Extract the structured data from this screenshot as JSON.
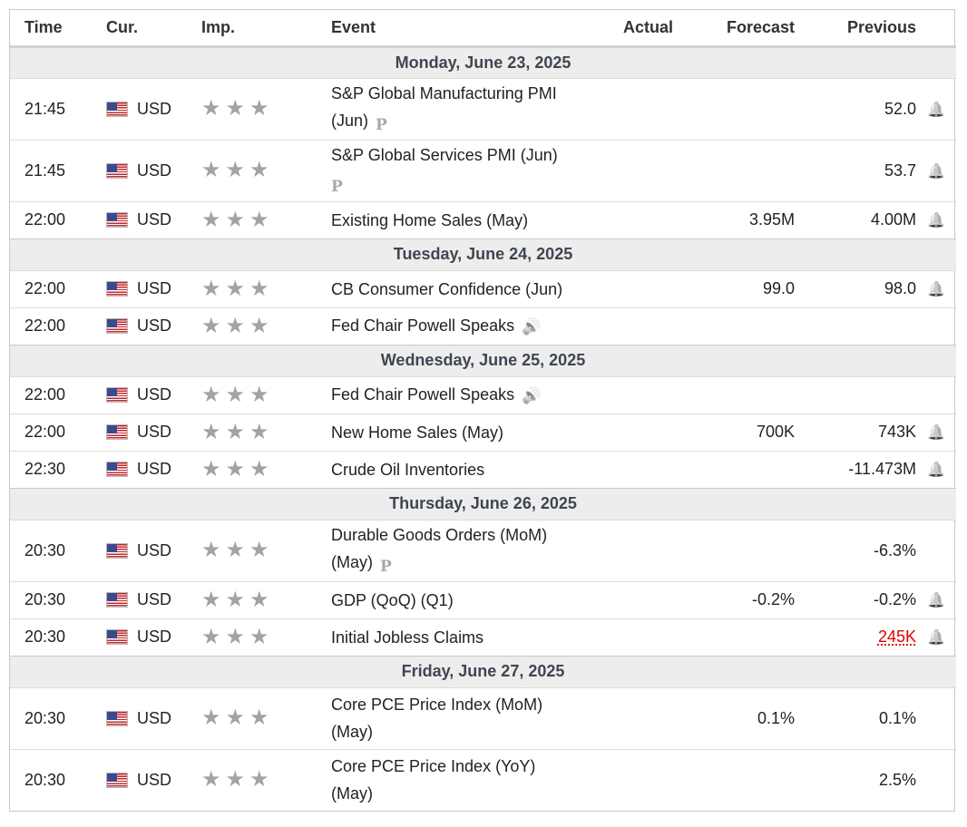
{
  "columns": {
    "time": "Time",
    "currency": "Cur.",
    "importance": "Imp.",
    "event": "Event",
    "actual": "Actual",
    "forecast": "Forecast",
    "previous": "Previous"
  },
  "icons": {
    "flag": "us-flag-icon",
    "star": "★",
    "preliminary": "P",
    "speaker": "🔊",
    "bell": "🔔"
  },
  "colors": {
    "star": "#a3a3a3",
    "day_header_bg": "#ededed",
    "worse_value": "#e30000"
  },
  "days": [
    {
      "label": "Monday, June 23, 2025",
      "events": [
        {
          "time": "21:45",
          "currency": "USD",
          "stars": 3,
          "event_line1": "S&P Global Manufacturing PMI",
          "event_line2": "(Jun)",
          "marker": "P",
          "actual": "",
          "forecast": "",
          "previous": "52.0",
          "alert": true
        },
        {
          "time": "21:45",
          "currency": "USD",
          "stars": 3,
          "event_line1": "S&P Global Services PMI (Jun)",
          "event_line2": "",
          "marker": "P",
          "actual": "",
          "forecast": "",
          "previous": "53.7",
          "alert": true
        },
        {
          "time": "22:00",
          "currency": "USD",
          "stars": 3,
          "event_line1": "Existing Home Sales (May)",
          "event_line2": "",
          "marker": "",
          "actual": "",
          "forecast": "3.95M",
          "previous": "4.00M",
          "alert": true
        }
      ]
    },
    {
      "label": "Tuesday, June 24, 2025",
      "events": [
        {
          "time": "22:00",
          "currency": "USD",
          "stars": 3,
          "event_line1": "CB Consumer Confidence (Jun)",
          "event_line2": "",
          "marker": "",
          "actual": "",
          "forecast": "99.0",
          "previous": "98.0",
          "alert": true
        },
        {
          "time": "22:00",
          "currency": "USD",
          "stars": 3,
          "event_line1": "Fed Chair Powell Speaks",
          "event_line2": "",
          "marker": "speaker",
          "actual": "",
          "forecast": "",
          "previous": "",
          "alert": false
        }
      ]
    },
    {
      "label": "Wednesday, June 25, 2025",
      "events": [
        {
          "time": "22:00",
          "currency": "USD",
          "stars": 3,
          "event_line1": "Fed Chair Powell Speaks",
          "event_line2": "",
          "marker": "speaker",
          "actual": "",
          "forecast": "",
          "previous": "",
          "alert": false
        },
        {
          "time": "22:00",
          "currency": "USD",
          "stars": 3,
          "event_line1": "New Home Sales (May)",
          "event_line2": "",
          "marker": "",
          "actual": "",
          "forecast": "700K",
          "previous": "743K",
          "alert": true
        },
        {
          "time": "22:30",
          "currency": "USD",
          "stars": 3,
          "event_line1": "Crude Oil Inventories",
          "event_line2": "",
          "marker": "",
          "actual": "",
          "forecast": "",
          "previous": "-11.473M",
          "alert": true
        }
      ]
    },
    {
      "label": "Thursday, June 26, 2025",
      "events": [
        {
          "time": "20:30",
          "currency": "USD",
          "stars": 3,
          "event_line1": "Durable Goods Orders (MoM)",
          "event_line2": "(May)",
          "marker": "P",
          "actual": "",
          "forecast": "",
          "previous": "-6.3%",
          "alert": false
        },
        {
          "time": "20:30",
          "currency": "USD",
          "stars": 3,
          "event_line1": "GDP (QoQ) (Q1)",
          "event_line2": "",
          "marker": "",
          "actual": "",
          "forecast": "-0.2%",
          "previous": "-0.2%",
          "alert": true
        },
        {
          "time": "20:30",
          "currency": "USD",
          "stars": 3,
          "event_line1": "Initial Jobless Claims",
          "event_line2": "",
          "marker": "",
          "actual": "",
          "forecast": "",
          "previous": "245K",
          "previous_worse": true,
          "alert": true
        }
      ]
    },
    {
      "label": "Friday, June 27, 2025",
      "events": [
        {
          "time": "20:30",
          "currency": "USD",
          "stars": 3,
          "event_line1": "Core PCE Price Index (MoM)",
          "event_line2": "(May)",
          "marker": "",
          "actual": "",
          "forecast": "0.1%",
          "previous": "0.1%",
          "alert": false
        },
        {
          "time": "20:30",
          "currency": "USD",
          "stars": 3,
          "event_line1": "Core PCE Price Index (YoY)",
          "event_line2": "(May)",
          "marker": "",
          "actual": "",
          "forecast": "",
          "previous": "2.5%",
          "alert": false
        }
      ]
    }
  ]
}
